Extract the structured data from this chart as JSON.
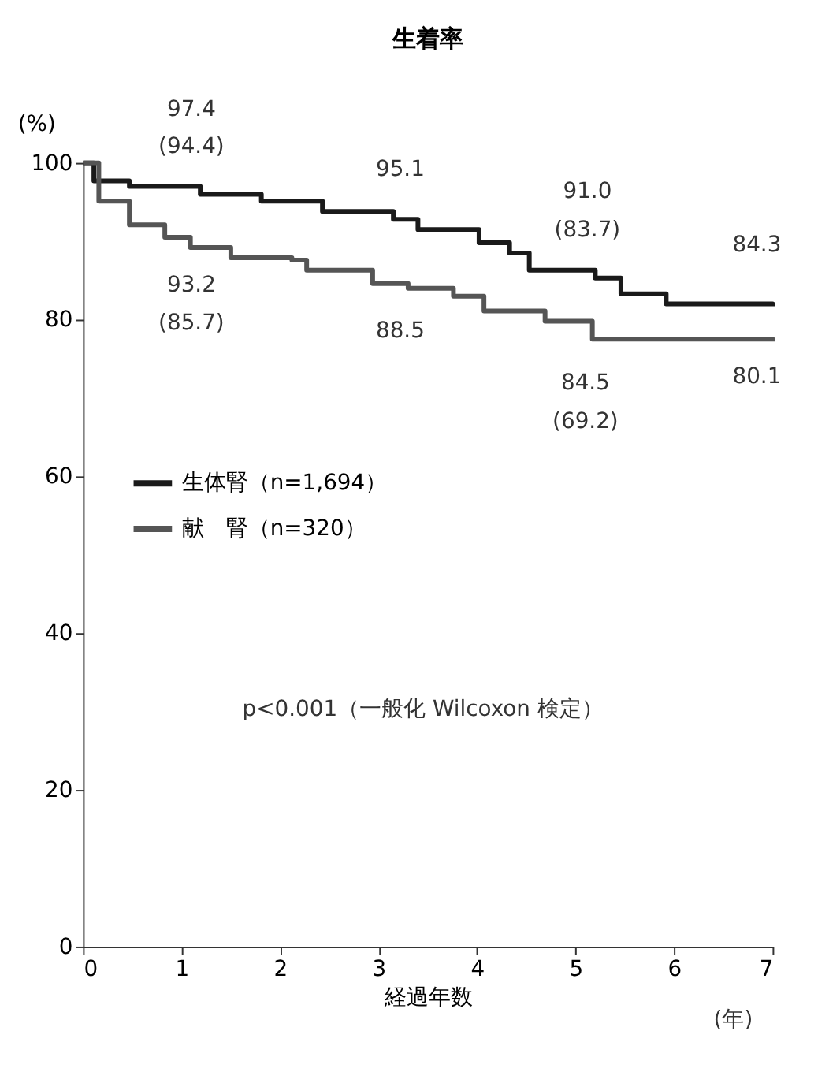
{
  "chart_data": {
    "type": "step",
    "title": "生着率",
    "ylabel": "(%)",
    "xlabel": "経過年数",
    "xlim": [
      0,
      7
    ],
    "xticks": [
      0,
      1,
      2,
      3,
      4,
      5,
      6,
      7
    ],
    "ylim": [
      0,
      100
    ],
    "yticks": [
      0,
      20,
      40,
      60,
      80,
      100
    ],
    "grid": false,
    "legend": "left",
    "marker": "none",
    "line_style": "solid",
    "series": [
      {
        "name": "生体腎（n=1,694）",
        "color": "#1a1a1a",
        "x": [
          0,
          0.11,
          0.47,
          1.19,
          1.81,
          2.43,
          3.15,
          3.4,
          4.02,
          4.33,
          4.53,
          5.2,
          5.46,
          5.92,
          7.0
        ],
        "values": [
          100,
          97.7,
          97.0,
          96.0,
          95.1,
          93.8,
          92.8,
          91.5,
          89.8,
          88.5,
          86.3,
          85.3,
          83.3,
          82.0,
          81.7
        ]
      },
      {
        "name": "献　腎（n=320）",
        "color": "#555555",
        "x": [
          0,
          0.16,
          0.47,
          0.83,
          1.09,
          1.5,
          2.12,
          2.27,
          2.94,
          3.3,
          3.76,
          4.07,
          4.69,
          5.17,
          7.0
        ],
        "values": [
          100,
          95.1,
          92.1,
          90.5,
          89.2,
          87.9,
          87.6,
          86.3,
          84.6,
          84.0,
          83.0,
          81.1,
          79.8,
          77.5,
          77.2
        ]
      }
    ],
    "annotations": [
      "97.4",
      "(94.4)",
      "93.2",
      "(85.7)",
      "95.1",
      "88.5",
      "91.0",
      "(83.7)",
      "84.5",
      "(69.2)",
      "84.3",
      "80.1",
      "p<0.001（一般化 Wilcoxon 検定）",
      "(年)"
    ]
  }
}
